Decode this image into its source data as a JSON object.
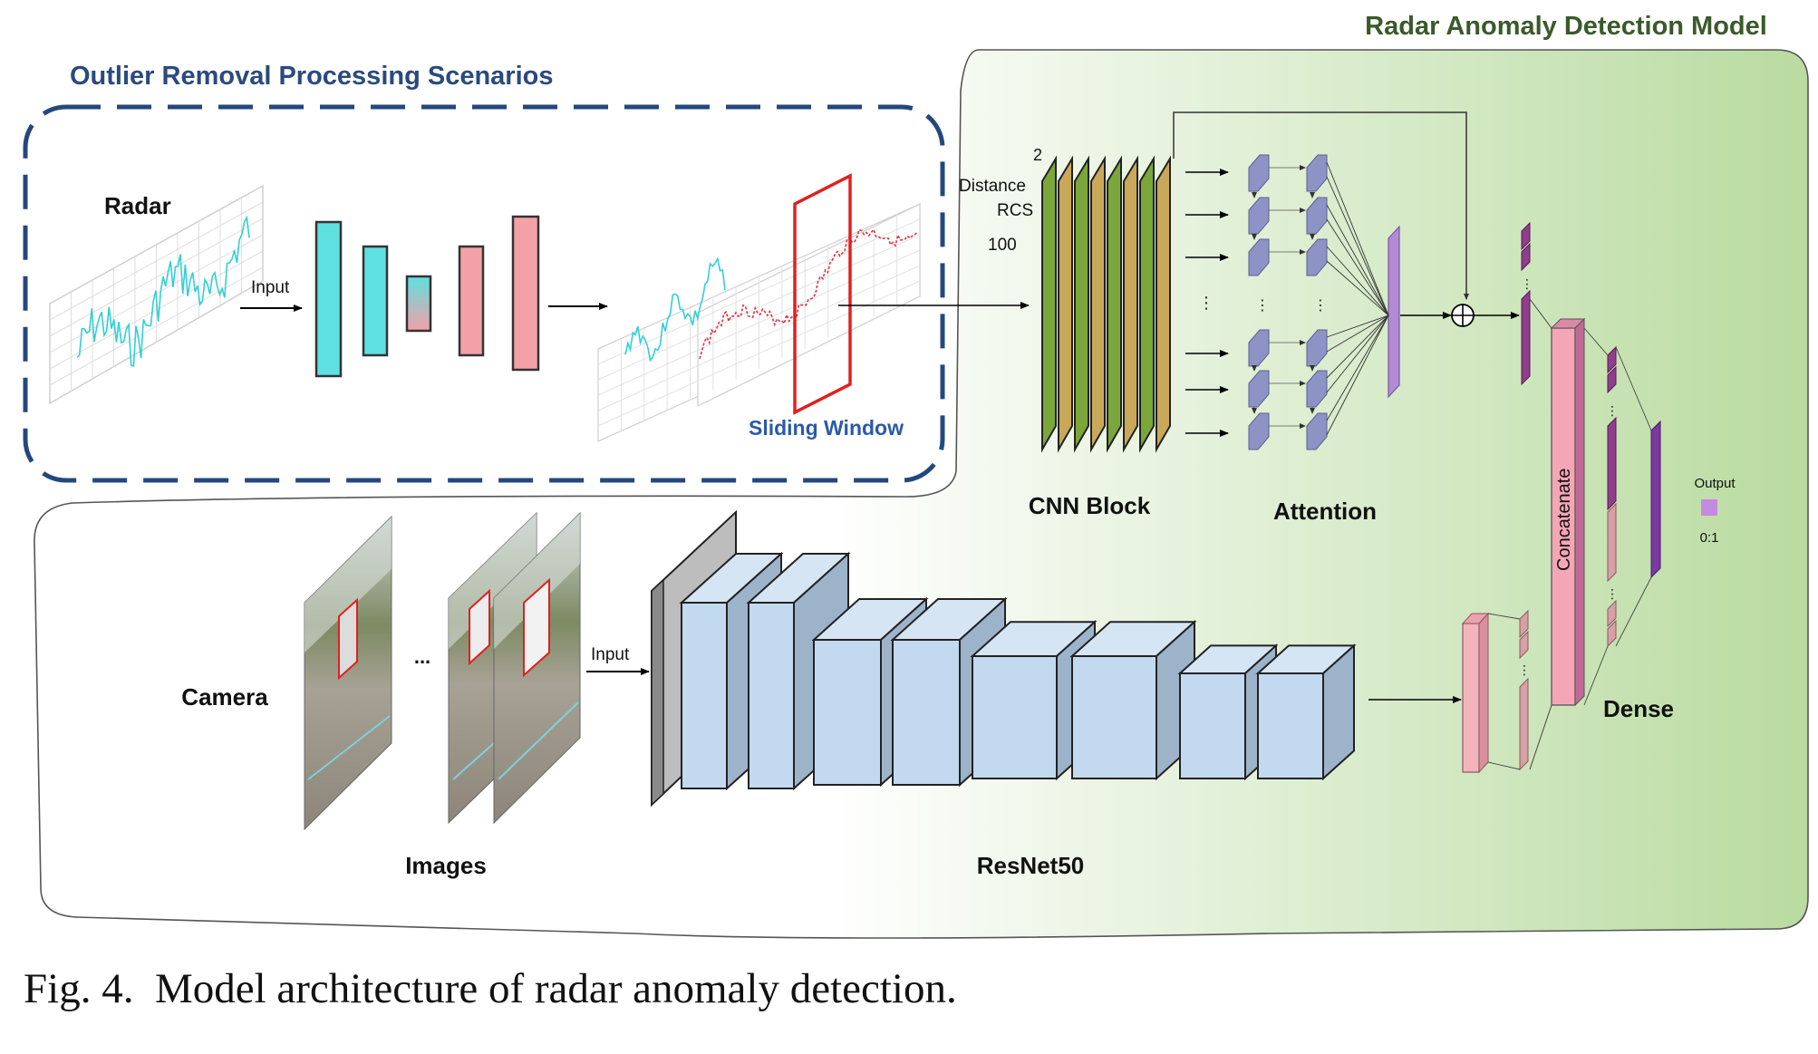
{
  "titles": {
    "model": "Radar Anomaly Detection Model",
    "outlier": "Outlier Removal Processing Scenarios"
  },
  "labels": {
    "radar": "Radar",
    "input_radar": "Input",
    "sliding_window": "Sliding Window",
    "dim_2": "2",
    "distance": "Distance",
    "rcs": "RCS",
    "dim_100": "100",
    "cnn_block": "CNN Block",
    "attention": "Attention",
    "concatenate": "Concatenate",
    "output": "Output",
    "output_range": "0:1",
    "dense": "Dense",
    "camera": "Camera",
    "ellipsis": "...",
    "input_camera": "Input",
    "images": "Images",
    "resnet50": "ResNet50"
  },
  "caption": {
    "fig_number": "Fig. 4.",
    "text": "Model architecture of radar anomaly detection."
  },
  "colors": {
    "title_green": "#3a5a2a",
    "title_blue": "#2a4a7f",
    "cyan": "#5fe0e0",
    "pink": "#f4a0a8",
    "cnn_green": "#7aa63a",
    "cnn_tan": "#c9a85a",
    "attention_blue": "#8e93c6",
    "purple": "#b28ad6",
    "dark_purple": "#7a3aa0",
    "dense_pink": "#d9a0b0",
    "resnet_blue": "#c2d9ef",
    "sliding_red": "#e02020"
  }
}
